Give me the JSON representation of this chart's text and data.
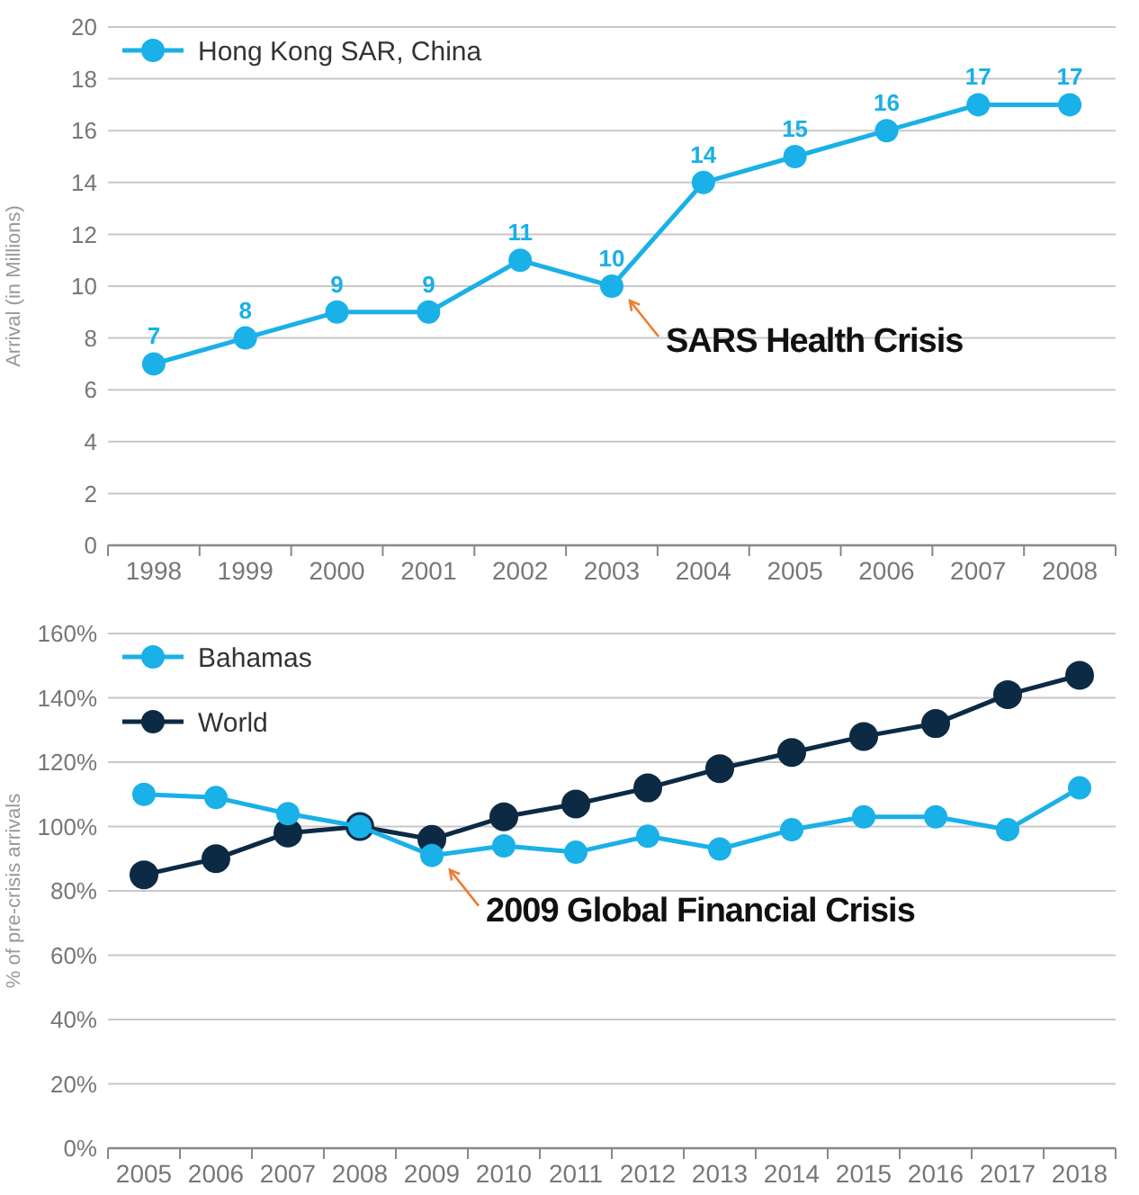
{
  "chart_data": [
    {
      "type": "line",
      "ylabel": "Arrival (in Millions)",
      "categories": [
        "1998",
        "1999",
        "2000",
        "2001",
        "2002",
        "2003",
        "2004",
        "2005",
        "2006",
        "2007",
        "2008"
      ],
      "series": [
        {
          "name": "Hong Kong SAR, China",
          "color": "#1ab0e8",
          "values": [
            7,
            8,
            9,
            9,
            11,
            10,
            14,
            15,
            16,
            17,
            17
          ]
        }
      ],
      "ylim": [
        0,
        20
      ],
      "yticks": [
        0,
        2,
        4,
        6,
        8,
        10,
        12,
        14,
        16,
        18,
        20
      ],
      "grid": "y",
      "legend": "top left",
      "marker": "circle",
      "data_labels": true,
      "annotations": [
        {
          "text": "SARS Health Crisis",
          "x": "2003",
          "y": 10
        }
      ]
    },
    {
      "type": "line",
      "ylabel": "% of pre-crisis arrivals",
      "categories": [
        "2005",
        "2006",
        "2007",
        "2008",
        "2009",
        "2010",
        "2011",
        "2012",
        "2013",
        "2014",
        "2015",
        "2016",
        "2017",
        "2018"
      ],
      "series": [
        {
          "name": "Bahamas",
          "color": "#1ab0e8",
          "values": [
            110,
            109,
            104,
            100,
            91,
            94,
            92,
            97,
            93,
            99,
            103,
            103,
            99,
            112
          ]
        },
        {
          "name": "World",
          "color": "#0d2a45",
          "values": [
            85,
            90,
            98,
            100,
            96,
            103,
            107,
            112,
            118,
            123,
            128,
            132,
            141,
            147
          ]
        }
      ],
      "ylim": [
        0,
        160
      ],
      "yticks": [
        {
          "value": 0,
          "label": "0%"
        },
        {
          "value": 20,
          "label": "20%"
        },
        {
          "value": 40,
          "label": "40%"
        },
        {
          "value": 60,
          "label": "60%"
        },
        {
          "value": 80,
          "label": "80%"
        },
        {
          "value": 100,
          "label": "100%"
        },
        {
          "value": 120,
          "label": "120%"
        },
        {
          "value": 140,
          "label": "140%"
        },
        {
          "value": 160,
          "label": "160%"
        }
      ],
      "grid": "y",
      "legend": "top left",
      "marker": "circle",
      "annotations": [
        {
          "text": "2009 Global Financial Crisis",
          "x": "2009",
          "y": 91
        }
      ]
    }
  ]
}
